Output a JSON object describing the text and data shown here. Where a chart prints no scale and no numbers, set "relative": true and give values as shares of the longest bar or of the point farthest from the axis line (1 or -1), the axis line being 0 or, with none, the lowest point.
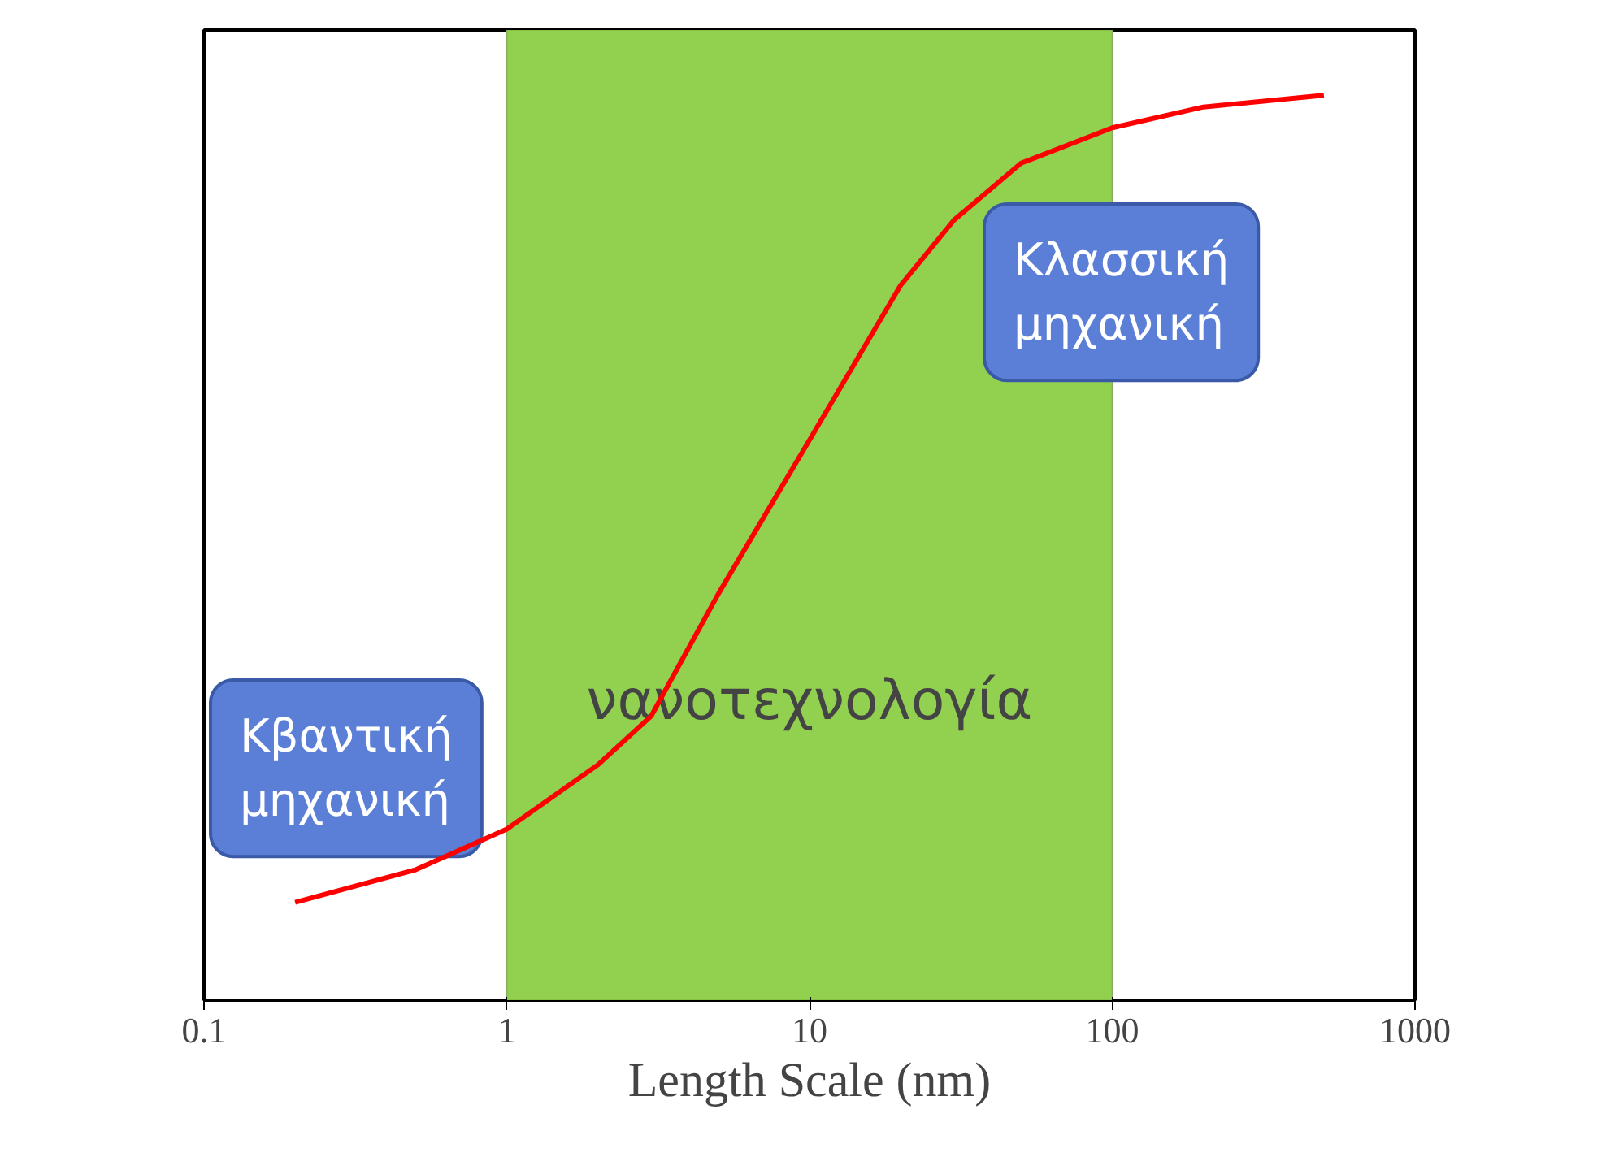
{
  "chart_data": {
    "type": "line",
    "relative": true,
    "log": "x",
    "xlabel": "Length Scale (nm)",
    "x": [
      0.2,
      0.5,
      1,
      2,
      3,
      5,
      10,
      20,
      30,
      50,
      100,
      200,
      500
    ],
    "series": [
      {
        "color": "#ff0000",
        "values": [
          0.108,
          0.144,
          0.189,
          0.26,
          0.314,
          0.449,
          0.619,
          0.79,
          0.862,
          0.925,
          0.964,
          0.987,
          1.0
        ]
      }
    ],
    "xlim": [
      0.1,
      1000
    ],
    "xticks": [
      0.1,
      1,
      10,
      100,
      1000
    ],
    "tick_labels": "x",
    "grid": "x",
    "marker": "none",
    "line_style": "solid",
    "bands": [
      {
        "axis": "x",
        "from": 1,
        "to": 100,
        "label": "νανοτεχνολογία",
        "color": "#92d050"
      }
    ],
    "annotations": [
      "Κβαντική\nμηχανική",
      "Κλασσική\nμηχανική"
    ]
  }
}
